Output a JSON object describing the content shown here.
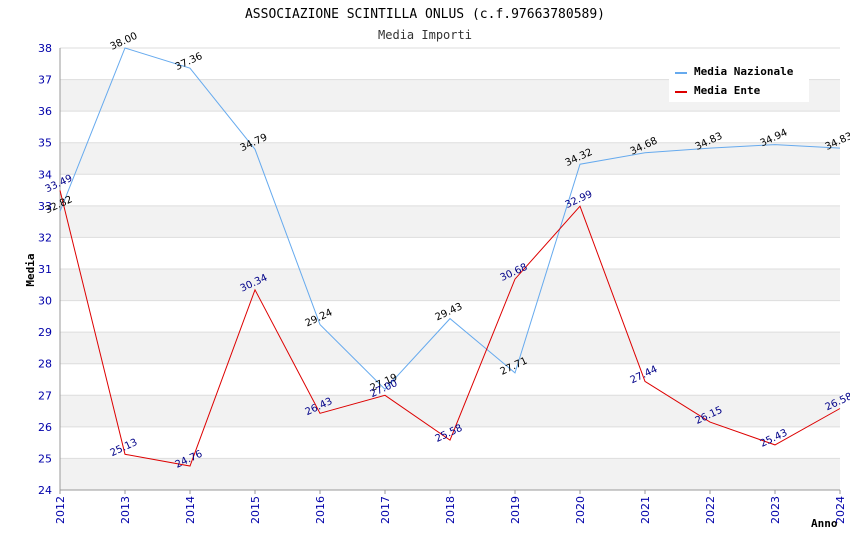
{
  "chart_data": {
    "type": "line",
    "title": "ASSOCIAZIONE SCINTILLA ONLUS (c.f.97663780589)",
    "subtitle": "Media Importi",
    "xlabel": "Anno",
    "ylabel": "Media",
    "ylim": [
      24,
      38
    ],
    "yticks": [
      "24",
      "25",
      "26",
      "27",
      "28",
      "29",
      "30",
      "31",
      "32",
      "33",
      "34",
      "35",
      "36",
      "37",
      "38"
    ],
    "categories": [
      "2012",
      "2013",
      "2014",
      "2015",
      "2016",
      "2017",
      "2018",
      "2019",
      "2020",
      "2021",
      "2022",
      "2023",
      "2024"
    ],
    "grid": true,
    "legend_position": "top-right",
    "series": [
      {
        "name": "Media Nazionale",
        "color": "#66aaee",
        "label_color": "#000000",
        "values": [
          32.82,
          38.0,
          37.36,
          34.79,
          29.24,
          27.19,
          29.43,
          27.71,
          34.32,
          34.68,
          34.83,
          34.94,
          34.83
        ],
        "labels": [
          "32.82",
          "38.00",
          "37.36",
          "34.79",
          "29.24",
          "27.19",
          "29.43",
          "27.71",
          "34.32",
          "34.68",
          "34.83",
          "34.94",
          "34.83"
        ]
      },
      {
        "name": "Media Ente",
        "color": "#dd0000",
        "label_color": "#000088",
        "values": [
          33.49,
          25.13,
          24.76,
          30.34,
          26.43,
          27.0,
          25.58,
          30.68,
          32.99,
          27.44,
          26.15,
          25.43,
          26.58
        ],
        "labels": [
          "33.49",
          "25.13",
          "24.76",
          "30.34",
          "26.43",
          "27.00",
          "25.58",
          "30.68",
          "32.99",
          "27.44",
          "26.15",
          "25.43",
          "26.58"
        ]
      }
    ]
  }
}
